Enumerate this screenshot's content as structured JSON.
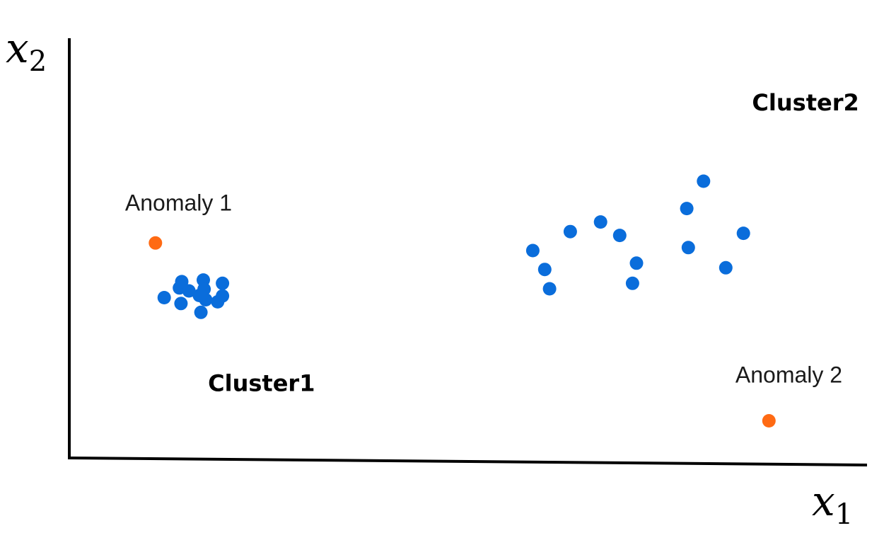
{
  "chart_data": {
    "type": "scatter",
    "xlabel": {
      "base": "x",
      "sub": "1"
    },
    "ylabel": {
      "base": "x",
      "sub": "2"
    },
    "xlim": [
      0,
      100
    ],
    "ylim": [
      0,
      100
    ],
    "grid": false,
    "series": [
      {
        "color": "#0a6ddb",
        "points": [
          [
            11.9,
            38.3
          ],
          [
            13.8,
            40.6
          ],
          [
            14.0,
            36.9
          ],
          [
            14.1,
            42.1
          ],
          [
            15.0,
            39.9
          ],
          [
            16.3,
            38.8
          ],
          [
            16.8,
            42.5
          ],
          [
            16.9,
            40.3
          ],
          [
            17.1,
            37.8
          ],
          [
            16.5,
            34.8
          ],
          [
            18.6,
            37.3
          ],
          [
            19.2,
            41.7
          ],
          [
            19.2,
            38.7
          ],
          [
            58.1,
            49.5
          ],
          [
            60.2,
            40.4
          ],
          [
            62.8,
            54.0
          ],
          [
            66.6,
            56.3
          ],
          [
            69.0,
            53.1
          ],
          [
            71.1,
            46.5
          ],
          [
            70.6,
            41.7
          ],
          [
            77.4,
            59.5
          ],
          [
            77.6,
            50.2
          ],
          [
            82.3,
            45.4
          ],
          [
            84.5,
            53.6
          ],
          [
            79.5,
            66.0
          ],
          [
            59.6,
            45.0
          ]
        ]
      },
      {
        "color": "#ff6a13",
        "points": [
          [
            10.8,
            51.3
          ],
          [
            87.7,
            9.0
          ]
        ]
      }
    ],
    "annotations": [
      {
        "text": "Anomaly 1",
        "x": 13.7,
        "y": 59.0,
        "style": "anomaly"
      },
      {
        "text": "Anomaly 2",
        "x": 90.2,
        "y": 18.1,
        "style": "anomaly"
      },
      {
        "text": "Cluster1",
        "x": 24.1,
        "y": 16.1,
        "style": "cluster"
      },
      {
        "text": "Cluster2",
        "x": 92.3,
        "y": 82.8,
        "style": "cluster"
      }
    ]
  }
}
